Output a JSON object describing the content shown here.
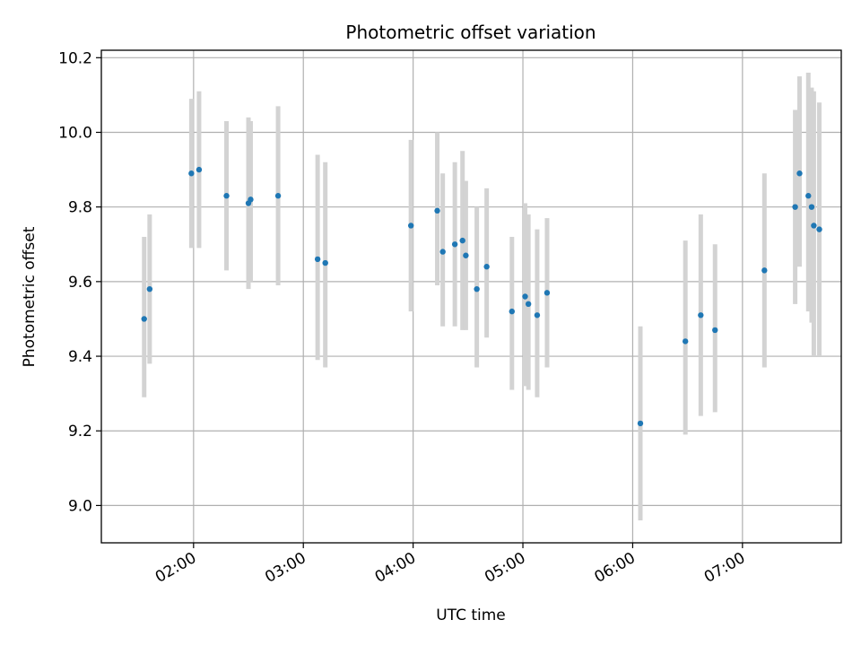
{
  "chart_data": {
    "type": "scatter",
    "title": "Photometric offset variation",
    "xlabel": "UTC time",
    "ylabel": "Photometric offset",
    "x_unit": "UTC hours",
    "xlim": [
      1.16,
      7.9
    ],
    "ylim": [
      8.9,
      10.22
    ],
    "x_ticks": [
      {
        "value": 2,
        "label": "02:00"
      },
      {
        "value": 3,
        "label": "03:00"
      },
      {
        "value": 4,
        "label": "04:00"
      },
      {
        "value": 5,
        "label": "05:00"
      },
      {
        "value": 6,
        "label": "06:00"
      },
      {
        "value": 7,
        "label": "07:00"
      }
    ],
    "y_ticks": [
      {
        "value": 9.0,
        "label": "9.0"
      },
      {
        "value": 9.2,
        "label": "9.2"
      },
      {
        "value": 9.4,
        "label": "9.4"
      },
      {
        "value": 9.6,
        "label": "9.6"
      },
      {
        "value": 9.8,
        "label": "9.8"
      },
      {
        "value": 10.0,
        "label": "10.0"
      },
      {
        "value": 10.2,
        "label": "10.2"
      }
    ],
    "grid": true,
    "point_color": "#1f77b4",
    "errorbar_color": "#d3d3d3",
    "points": [
      {
        "x": 1.55,
        "y": 9.5,
        "lo": 9.29,
        "hi": 9.72
      },
      {
        "x": 1.6,
        "y": 9.58,
        "lo": 9.38,
        "hi": 9.78
      },
      {
        "x": 1.98,
        "y": 9.89,
        "lo": 9.69,
        "hi": 10.09
      },
      {
        "x": 2.05,
        "y": 9.9,
        "lo": 9.69,
        "hi": 10.11
      },
      {
        "x": 2.3,
        "y": 9.83,
        "lo": 9.63,
        "hi": 10.03
      },
      {
        "x": 2.5,
        "y": 9.81,
        "lo": 9.58,
        "hi": 10.04
      },
      {
        "x": 2.52,
        "y": 9.82,
        "lo": 9.6,
        "hi": 10.03
      },
      {
        "x": 2.77,
        "y": 9.83,
        "lo": 9.59,
        "hi": 10.07
      },
      {
        "x": 3.13,
        "y": 9.66,
        "lo": 9.39,
        "hi": 9.94
      },
      {
        "x": 3.2,
        "y": 9.65,
        "lo": 9.37,
        "hi": 9.92
      },
      {
        "x": 3.98,
        "y": 9.75,
        "lo": 9.52,
        "hi": 9.98
      },
      {
        "x": 4.22,
        "y": 9.79,
        "lo": 9.59,
        "hi": 10.0
      },
      {
        "x": 4.27,
        "y": 9.68,
        "lo": 9.48,
        "hi": 9.89
      },
      {
        "x": 4.38,
        "y": 9.7,
        "lo": 9.48,
        "hi": 9.92
      },
      {
        "x": 4.45,
        "y": 9.71,
        "lo": 9.47,
        "hi": 9.95
      },
      {
        "x": 4.48,
        "y": 9.67,
        "lo": 9.47,
        "hi": 9.87
      },
      {
        "x": 4.58,
        "y": 9.58,
        "lo": 9.37,
        "hi": 9.8
      },
      {
        "x": 4.67,
        "y": 9.64,
        "lo": 9.45,
        "hi": 9.85
      },
      {
        "x": 4.9,
        "y": 9.52,
        "lo": 9.31,
        "hi": 9.72
      },
      {
        "x": 5.02,
        "y": 9.56,
        "lo": 9.32,
        "hi": 9.81
      },
      {
        "x": 5.05,
        "y": 9.54,
        "lo": 9.31,
        "hi": 9.78
      },
      {
        "x": 5.13,
        "y": 9.51,
        "lo": 9.29,
        "hi": 9.74
      },
      {
        "x": 5.22,
        "y": 9.57,
        "lo": 9.37,
        "hi": 9.77
      },
      {
        "x": 6.07,
        "y": 9.22,
        "lo": 8.96,
        "hi": 9.48
      },
      {
        "x": 6.48,
        "y": 9.44,
        "lo": 9.19,
        "hi": 9.71
      },
      {
        "x": 6.62,
        "y": 9.51,
        "lo": 9.24,
        "hi": 9.78
      },
      {
        "x": 6.75,
        "y": 9.47,
        "lo": 9.25,
        "hi": 9.7
      },
      {
        "x": 7.2,
        "y": 9.63,
        "lo": 9.37,
        "hi": 9.89
      },
      {
        "x": 7.48,
        "y": 9.8,
        "lo": 9.54,
        "hi": 10.06
      },
      {
        "x": 7.52,
        "y": 9.89,
        "lo": 9.64,
        "hi": 10.15
      },
      {
        "x": 7.6,
        "y": 9.83,
        "lo": 9.52,
        "hi": 10.16
      },
      {
        "x": 7.63,
        "y": 9.8,
        "lo": 9.49,
        "hi": 10.12
      },
      {
        "x": 7.65,
        "y": 9.75,
        "lo": 9.4,
        "hi": 10.11
      },
      {
        "x": 7.7,
        "y": 9.74,
        "lo": 9.4,
        "hi": 10.08
      }
    ]
  }
}
